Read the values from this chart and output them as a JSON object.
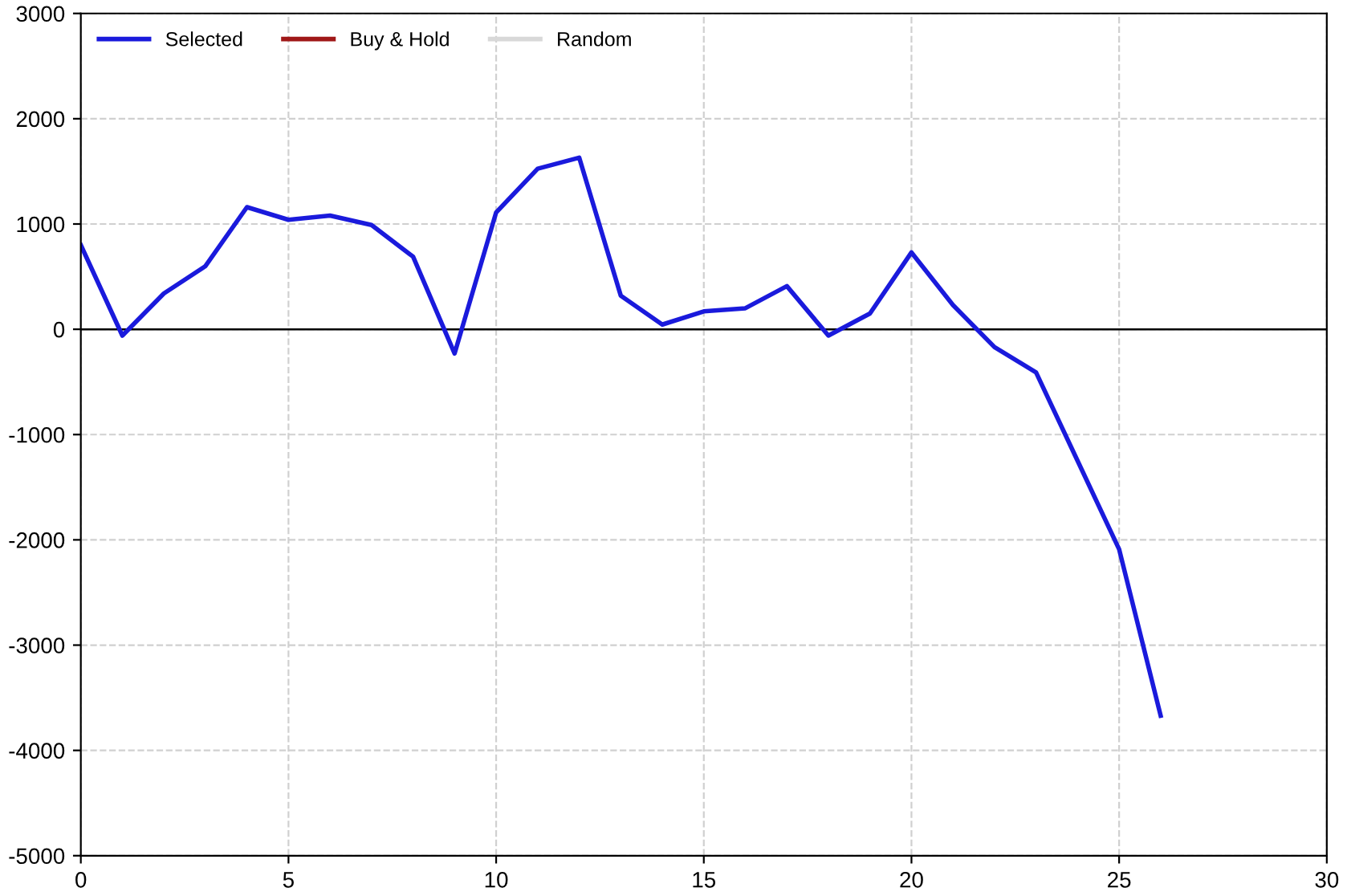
{
  "chart_data": {
    "type": "line",
    "x": [
      0,
      1,
      2,
      3,
      4,
      5,
      6,
      7,
      8,
      9,
      10,
      11,
      12,
      13,
      14,
      15,
      16,
      17,
      18,
      19,
      20,
      21,
      22,
      23,
      24,
      25,
      26
    ],
    "series": [
      {
        "name": "Selected",
        "color": "#1a1adc",
        "values": [
          800,
          -60,
          340,
          600,
          1160,
          1040,
          1080,
          990,
          690,
          -230,
          1110,
          1525,
          1630,
          320,
          45,
          170,
          200,
          410,
          -60,
          150,
          730,
          230,
          -170,
          -410,
          -1250,
          -2090,
          -3670
        ]
      },
      {
        "name": "Buy & Hold",
        "color": "#a01818",
        "values": [
          null,
          null,
          null,
          null,
          null,
          null,
          null,
          null,
          null,
          null,
          null,
          null,
          null,
          null,
          null,
          null,
          null,
          null,
          null,
          null,
          null,
          null,
          null,
          null,
          null,
          null,
          null
        ]
      },
      {
        "name": "Random",
        "color": "#d8d8d8",
        "values": [
          null,
          null,
          null,
          null,
          null,
          null,
          null,
          null,
          null,
          null,
          null,
          null,
          null,
          null,
          null,
          null,
          null,
          null,
          null,
          null,
          null,
          null,
          null,
          null,
          null,
          null,
          null
        ]
      }
    ],
    "xlim": [
      0,
      30
    ],
    "xticks": [
      0,
      5,
      10,
      15,
      20,
      25,
      30
    ],
    "ylim": [
      -5000,
      3000
    ],
    "yticks": [
      -5000,
      -4000,
      -3000,
      -2000,
      -1000,
      0,
      1000,
      2000,
      3000
    ],
    "ref_lines": [
      {
        "axis": "y",
        "value": 0,
        "color": "#000000"
      }
    ],
    "grid": true,
    "legend": "top left",
    "marker": "none",
    "line_style": "solid"
  }
}
